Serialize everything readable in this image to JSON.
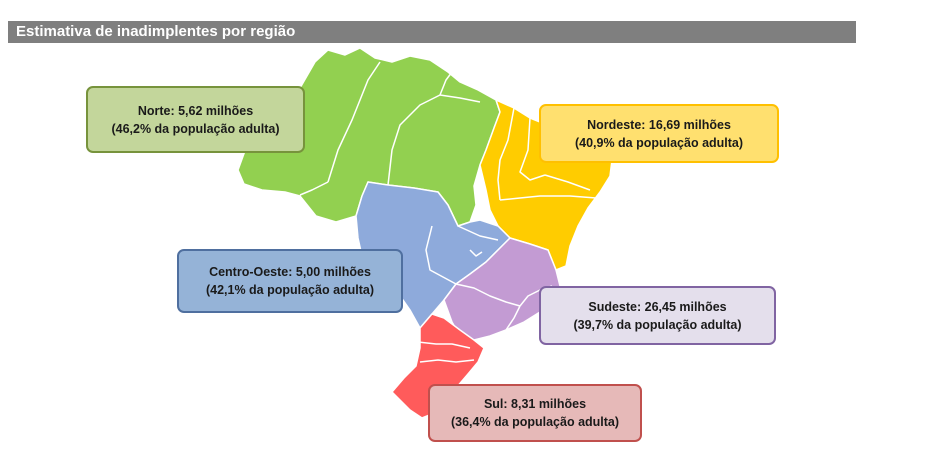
{
  "title": "Estimativa de inadimplentes por região",
  "colors": {
    "norte": "#92d050",
    "nordeste": "#ffcc00",
    "centro_oeste": "#8eaadb",
    "sudeste": "#c39bd3",
    "sul": "#ff5b5b",
    "border": "#ffffff",
    "title_bar": "#7f7f7f"
  },
  "regions": {
    "norte": {
      "line1": "Norte: 5,62 milhões",
      "line2": "(46,2% da população adulta)"
    },
    "nordeste": {
      "line1": "Nordeste: 16,69 milhões",
      "line2": "(40,9% da população adulta)"
    },
    "centro_oeste": {
      "line1": "Centro-Oeste: 5,00 milhões",
      "line2": "(42,1% da população adulta)"
    },
    "sudeste": {
      "line1": "Sudeste: 26,45 milhões",
      "line2": "(39,7% da população adulta)"
    },
    "sul": {
      "line1": "Sul: 8,31 milhões",
      "line2": "(36,4% da população adulta)"
    }
  }
}
